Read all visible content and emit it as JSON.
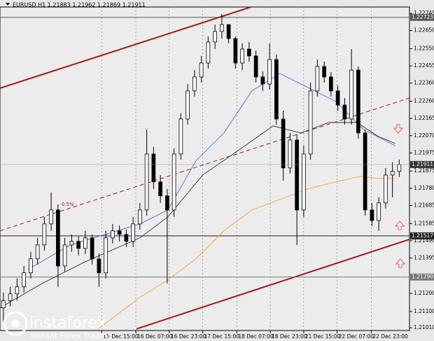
{
  "chart_data": {
    "type": "candlestick",
    "title": "EURUSD,H1  1.21883 1.21962 1.21869 1.21911",
    "annotation": "0.5%",
    "logo": "instaforex",
    "logo_tagline": "Instant Forex Trading",
    "xlim": [
      0,
      60
    ],
    "ylim": [
      1.20995,
      1.2278
    ],
    "grid": true,
    "yticks": [
      1.22745,
      {
        "value": 1.2265,
        "label": "1.22650"
      },
      {
        "value": 1.2255,
        "label": "1.22550"
      },
      1.22455,
      {
        "value": 1.2236,
        "label": "1.22360"
      },
      {
        "value": 1.2226,
        "label": "1.22260"
      },
      1.22165,
      {
        "value": 1.2207,
        "label": "1.22070"
      },
      1.21975,
      1.21875,
      {
        "value": 1.2178,
        "label": "1.21780"
      },
      1.21685,
      1.21585,
      {
        "value": 1.2149,
        "label": "1.21490"
      },
      1.21395,
      {
        "value": 1.212,
        "label": "1.21200"
      },
      {
        "value": 1.211,
        "label": "1.21100"
      },
      {
        "value": 1.2101,
        "label": "1.21010"
      }
    ],
    "xticks": [
      {
        "value": 14.9,
        "label": "15 Dec 15:00"
      },
      {
        "value": 19.9,
        "label": "16 Dec 07:00"
      },
      {
        "value": 24.8,
        "label": "16 Dec 23:00"
      },
      {
        "value": 29.7,
        "label": "17 Dec 15:00"
      },
      {
        "value": 34.7,
        "label": "18 Dec 07:00"
      },
      {
        "value": 39.6,
        "label": "18 Dec 23:00"
      },
      {
        "value": 44.5,
        "label": "21 Dec 15:00"
      },
      {
        "value": 49.4,
        "label": "22 Dec 07:00"
      },
      {
        "value": 54.4,
        "label": "22 Dec 23:00"
      }
    ],
    "candles": {
      "open": [
        1.2112,
        1.21159,
        1.21197,
        1.21236,
        1.21313,
        1.2139,
        1.21467,
        1.21583,
        1.2166,
        1.21351,
        1.21467,
        1.21487,
        1.21448,
        1.21506,
        1.2139,
        1.21313,
        1.21506,
        1.21545,
        1.21525,
        1.21487,
        1.21583,
        1.2166,
        1.21969,
        1.21815,
        1.21738,
        1.2166,
        1.21969,
        1.22162,
        1.22317,
        1.22394,
        1.22471,
        1.22587,
        1.22645,
        1.22683,
        1.22606,
        1.22471,
        1.22548,
        1.2251,
        1.22394,
        1.22355,
        1.2249,
        1.22162,
        1.21892,
        1.22046,
        1.2166,
        1.21969,
        1.22317,
        1.22452,
        1.22394,
        1.22317,
        1.22239,
        1.22162,
        1.22432,
        1.22085,
        1.2166,
        1.21602,
        1.21699,
        1.21853,
        1.21873
      ],
      "high": [
        1.21205,
        1.21236,
        1.21282,
        1.21351,
        1.21429,
        1.21506,
        1.21622,
        1.21757,
        1.21691,
        1.21506,
        1.21525,
        1.21514,
        1.21545,
        1.21525,
        1.21421,
        1.21545,
        1.21583,
        1.21575,
        1.21552,
        1.21622,
        1.21699,
        1.22104,
        1.22008,
        1.21853,
        1.21776,
        1.22,
        1.22193,
        1.22355,
        1.22432,
        1.2251,
        1.22618,
        1.22683,
        1.22741,
        1.22683,
        1.22618,
        1.22579,
        1.22587,
        1.2254,
        1.22425,
        1.22579,
        1.22517,
        1.22208,
        1.22085,
        1.22077,
        1.22015,
        1.22363,
        1.2249,
        1.22479,
        1.22421,
        1.22347,
        1.22278,
        1.22548,
        1.22452,
        1.22104,
        1.21699,
        1.2173,
        1.21892,
        1.21923,
        1.21938
      ],
      "low": [
        1.21043,
        1.21128,
        1.21159,
        1.21205,
        1.21282,
        1.21359,
        1.21436,
        1.21545,
        1.21236,
        1.21321,
        1.21429,
        1.21409,
        1.21417,
        1.21359,
        1.21236,
        1.21282,
        1.21475,
        1.21487,
        1.21456,
        1.21456,
        1.21552,
        1.21629,
        1.21776,
        1.21699,
        1.21255,
        1.21622,
        1.21938,
        1.22131,
        1.22286,
        1.22363,
        1.2244,
        1.22548,
        1.22606,
        1.22579,
        1.2244,
        1.22432,
        1.22479,
        1.22363,
        1.22317,
        1.22324,
        1.22131,
        1.21822,
        1.21861,
        1.21467,
        1.21622,
        1.21938,
        1.22286,
        1.22363,
        1.22286,
        1.22208,
        1.22131,
        1.22131,
        1.22054,
        1.21629,
        1.21572,
        1.21545,
        1.21668,
        1.2173,
        1.21842
      ],
      "close": [
        1.21159,
        1.21197,
        1.21236,
        1.21313,
        1.2139,
        1.21467,
        1.21583,
        1.2166,
        1.21351,
        1.21467,
        1.21487,
        1.21448,
        1.21506,
        1.2139,
        1.21313,
        1.21506,
        1.21545,
        1.21525,
        1.21487,
        1.21583,
        1.2166,
        1.21969,
        1.21815,
        1.21738,
        1.2166,
        1.21969,
        1.22162,
        1.22317,
        1.22394,
        1.22471,
        1.22587,
        1.22645,
        1.22683,
        1.22606,
        1.22471,
        1.22548,
        1.2251,
        1.22394,
        1.22355,
        1.2249,
        1.22162,
        1.21892,
        1.22046,
        1.2166,
        1.21969,
        1.22317,
        1.22452,
        1.22394,
        1.22317,
        1.22239,
        1.22162,
        1.22432,
        1.22085,
        1.2166,
        1.21602,
        1.21699,
        1.21853,
        1.21873,
        1.21911
      ]
    },
    "indicators": [
      {
        "color": "#4a6fd6",
        "x": [
          4.1,
          10.3,
          20.5,
          24.6,
          28.7,
          32.8,
          36.9,
          41,
          45.1,
          49.2,
          53.3,
          57.9
        ],
        "values": [
          1.21332,
          1.21467,
          1.21583,
          1.2166,
          1.21931,
          1.22085,
          1.22317,
          1.22413,
          1.22336,
          1.22259,
          1.22104,
          1.22015
        ]
      },
      {
        "color": "#333333",
        "x": [
          0,
          6.2,
          12.3,
          20.5,
          24.6,
          29.7,
          34.9,
          40,
          44.1,
          48.2,
          52.3,
          55.4,
          57.9
        ],
        "values": [
          1.2112,
          1.21255,
          1.21371,
          1.21506,
          1.21622,
          1.21853,
          1.21988,
          1.22124,
          1.22085,
          1.22143,
          1.22143,
          1.22066,
          1.22027
        ]
      },
      {
        "color": "#f0a040",
        "x": [
          14.4,
          20.5,
          24.6,
          28.7,
          32.8,
          36.9,
          41,
          45.1,
          49.2,
          52.8,
          55.4,
          57.9
        ],
        "values": [
          1.21004,
          1.21178,
          1.21274,
          1.2139,
          1.21545,
          1.2166,
          1.21718,
          1.21776,
          1.21815,
          1.21846,
          1.21834,
          1.21834
        ]
      }
    ],
    "trend_lines": [
      {
        "color": "#a01818",
        "dashed": false,
        "x": [
          0,
          39
        ],
        "values": [
          1.22332,
          1.22807
        ]
      },
      {
        "color": "#a01818",
        "dashed": false,
        "x": [
          20,
          60
        ],
        "values": [
          1.21004,
          1.21498
        ]
      },
      {
        "color": "#a01818",
        "dashed": true,
        "x": [
          0,
          60
        ],
        "values": [
          1.21545,
          1.22278
        ]
      }
    ],
    "levels": [
      {
        "price": 1.22723,
        "color": "#555555"
      },
      {
        "price": 1.21517,
        "color": "#222222"
      },
      {
        "price": {
          "value": 1.2129,
          "label": "1.21290"
        },
        "color": "#777777"
      }
    ],
    "last_price": 1.21911
  }
}
